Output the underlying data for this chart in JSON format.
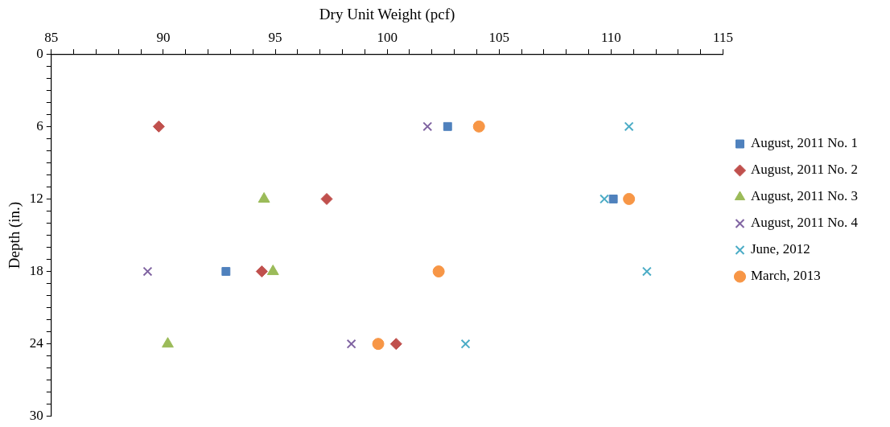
{
  "chart_data": {
    "type": "scatter",
    "xlabel": "Dry Unit Weight (pcf)",
    "ylabel": "Depth (in.)",
    "xlim": [
      85,
      115
    ],
    "ylim": [
      30,
      0
    ],
    "xticks": [
      85,
      {
        "value": 86,
        "label": null
      },
      {
        "value": 87,
        "label": null
      },
      {
        "value": 88,
        "label": null
      },
      {
        "value": 89,
        "label": null
      },
      90,
      {
        "value": 91,
        "label": null
      },
      {
        "value": 92,
        "label": null
      },
      {
        "value": 93,
        "label": null
      },
      {
        "value": 94,
        "label": null
      },
      95,
      {
        "value": 96,
        "label": null
      },
      {
        "value": 97,
        "label": null
      },
      {
        "value": 98,
        "label": null
      },
      {
        "value": 99,
        "label": null
      },
      100,
      {
        "value": 101,
        "label": null
      },
      {
        "value": 102,
        "label": null
      },
      {
        "value": 103,
        "label": null
      },
      {
        "value": 104,
        "label": null
      },
      105,
      {
        "value": 106,
        "label": null
      },
      {
        "value": 107,
        "label": null
      },
      {
        "value": 108,
        "label": null
      },
      {
        "value": 109,
        "label": null
      },
      110,
      {
        "value": 111,
        "label": null
      },
      {
        "value": 112,
        "label": null
      },
      {
        "value": 113,
        "label": null
      },
      {
        "value": 114,
        "label": null
      },
      115
    ],
    "yticks": [
      0,
      {
        "value": 1,
        "label": null
      },
      {
        "value": 2,
        "label": null
      },
      {
        "value": 3,
        "label": null
      },
      {
        "value": 4,
        "label": null
      },
      {
        "value": 5,
        "label": null
      },
      6,
      {
        "value": 7,
        "label": null
      },
      {
        "value": 8,
        "label": null
      },
      {
        "value": 9,
        "label": null
      },
      {
        "value": 10,
        "label": null
      },
      {
        "value": 11,
        "label": null
      },
      12,
      {
        "value": 13,
        "label": null
      },
      {
        "value": 14,
        "label": null
      },
      {
        "value": 15,
        "label": null
      },
      {
        "value": 16,
        "label": null
      },
      {
        "value": 17,
        "label": null
      },
      18,
      {
        "value": 19,
        "label": null
      },
      {
        "value": 20,
        "label": null
      },
      {
        "value": 21,
        "label": null
      },
      {
        "value": 22,
        "label": null
      },
      {
        "value": 23,
        "label": null
      },
      24,
      {
        "value": 25,
        "label": null
      },
      {
        "value": 26,
        "label": null
      },
      {
        "value": 27,
        "label": null
      },
      {
        "value": 28,
        "label": null
      },
      {
        "value": 29,
        "label": null
      },
      30
    ],
    "grid": false,
    "legend": "right",
    "series": [
      {
        "name": "August, 2011 No. 1",
        "color": "#4f81bd",
        "marker": "square",
        "x": [
          102.7,
          110.1,
          92.8
        ],
        "values": [
          6,
          12,
          18
        ]
      },
      {
        "name": "August, 2011 No. 2",
        "color": "#c0504d",
        "marker": "diamond",
        "x": [
          89.8,
          97.3,
          94.4,
          100.4
        ],
        "values": [
          6,
          12,
          18,
          24
        ]
      },
      {
        "name": "August, 2011 No. 3",
        "color": "#9bbb59",
        "marker": "triangle",
        "x": [
          94.5,
          94.9,
          90.2
        ],
        "values": [
          12,
          18,
          24
        ]
      },
      {
        "name": "August, 2011 No. 4",
        "color": "#8064a2",
        "marker": "cross",
        "x": [
          101.8,
          89.3,
          98.4
        ],
        "values": [
          6,
          18,
          24
        ]
      },
      {
        "name": "June, 2012",
        "color": "#4bacc6",
        "marker": "cross",
        "x": [
          110.8,
          109.7,
          111.6,
          103.5
        ],
        "values": [
          6,
          12,
          18,
          24
        ]
      },
      {
        "name": "March, 2013",
        "color": "#f79646",
        "marker": "circle",
        "x": [
          104.1,
          110.8,
          102.3,
          99.6
        ],
        "values": [
          6,
          12,
          18,
          24
        ]
      }
    ]
  }
}
